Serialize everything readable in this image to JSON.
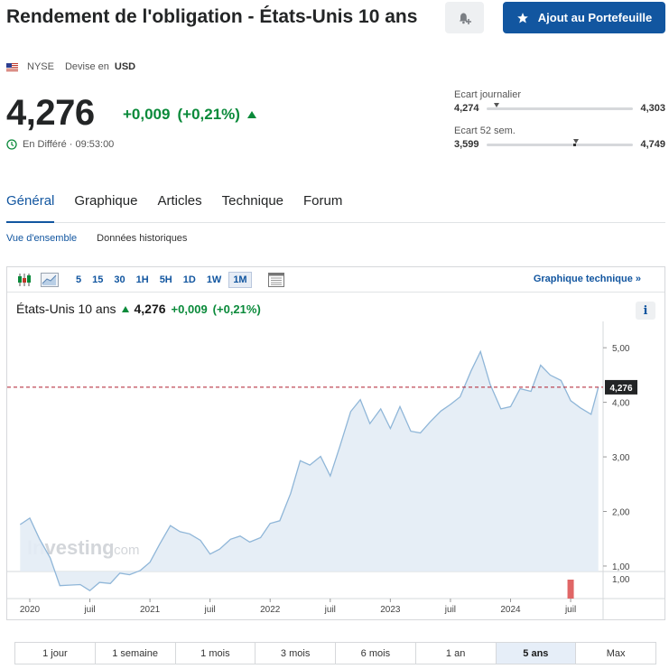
{
  "header": {
    "title": "Rendement de l'obligation - États-Unis 10 ans",
    "add_button": "Ajout au Portefeuille",
    "exchange": "NYSE",
    "currency_label": "Devise en",
    "currency": "USD"
  },
  "quote": {
    "price": "4,276",
    "change": "+0,009",
    "change_pct": "(+0,21%)",
    "delay_text": "En Différé · 09:53:00"
  },
  "ranges": {
    "daily": {
      "label": "Ecart journalier",
      "low": "4,274",
      "high": "4,303",
      "position": 0.05
    },
    "weekly52": {
      "label": "Ecart 52 sem.",
      "low": "3,599",
      "high": "4,749",
      "position": 0.59
    }
  },
  "tabs": [
    {
      "label": "Général",
      "active": true
    },
    {
      "label": "Graphique",
      "active": false
    },
    {
      "label": "Articles",
      "active": false
    },
    {
      "label": "Technique",
      "active": false
    },
    {
      "label": "Forum",
      "active": false
    }
  ],
  "subtabs": [
    {
      "label": "Vue d'ensemble",
      "active": true
    },
    {
      "label": "Données historiques",
      "active": false
    }
  ],
  "toolbar": {
    "intervals": [
      {
        "label": "5",
        "active": false
      },
      {
        "label": "15",
        "active": false
      },
      {
        "label": "30",
        "active": false
      },
      {
        "label": "1H",
        "active": false
      },
      {
        "label": "5H",
        "active": false
      },
      {
        "label": "1D",
        "active": false
      },
      {
        "label": "1W",
        "active": false
      },
      {
        "label": "1M",
        "active": true
      }
    ],
    "technical_link": "Graphique technique  »"
  },
  "chart_head": {
    "name": "États-Unis 10 ans",
    "value": "4,276",
    "change": "+0,009",
    "change_pct": "(+0,21%)",
    "info": "i"
  },
  "chart_data": {
    "type": "area",
    "watermark_a": "Investing",
    "watermark_b": ".com",
    "current_value_label": "4,276",
    "current_value": 4.276,
    "ylim": [
      0.9,
      5.35
    ],
    "y_ticks": [
      {
        "value": 5.0,
        "label": "5,00"
      },
      {
        "value": 4.0,
        "label": "4,00"
      },
      {
        "value": 3.0,
        "label": "3,00"
      },
      {
        "value": 2.0,
        "label": "2,00"
      },
      {
        "value": 1.0,
        "label": "1,00"
      }
    ],
    "volume_tick": "1,00",
    "x_ticks": [
      {
        "value": 2020.0,
        "label": "2020"
      },
      {
        "value": 2020.5,
        "label": "juil"
      },
      {
        "value": 2021.0,
        "label": "2021"
      },
      {
        "value": 2021.5,
        "label": "juil"
      },
      {
        "value": 2022.0,
        "label": "2022"
      },
      {
        "value": 2022.5,
        "label": "juil"
      },
      {
        "value": 2023.0,
        "label": "2023"
      },
      {
        "value": 2023.5,
        "label": "juil"
      },
      {
        "value": 2024.0,
        "label": "2024"
      },
      {
        "value": 2024.5,
        "label": "juil"
      }
    ],
    "x_range": [
      2019.88,
      2024.77
    ],
    "series": [
      {
        "x": [
          2019.92,
          2020.0,
          2020.08,
          2020.17,
          2020.25,
          2020.33,
          2020.42,
          2020.5,
          2020.58,
          2020.67,
          2020.75,
          2020.83,
          2020.92,
          2021.0,
          2021.08,
          2021.17,
          2021.25,
          2021.33,
          2021.42,
          2021.5,
          2021.58,
          2021.67,
          2021.75,
          2021.83,
          2021.92,
          2022.0,
          2022.08,
          2022.17,
          2022.25,
          2022.33,
          2022.42,
          2022.5,
          2022.58,
          2022.67,
          2022.75,
          2022.83,
          2022.92,
          2023.0,
          2023.08,
          2023.17,
          2023.25,
          2023.33,
          2023.42,
          2023.5,
          2023.58,
          2023.67,
          2023.75,
          2023.83,
          2023.92,
          2024.0,
          2024.08,
          2024.17,
          2024.25,
          2024.33,
          2024.42,
          2024.5,
          2024.58,
          2024.67,
          2024.73
        ],
        "values": [
          1.76,
          1.88,
          1.5,
          1.15,
          0.64,
          0.65,
          0.66,
          0.55,
          0.7,
          0.68,
          0.87,
          0.84,
          0.92,
          1.07,
          1.4,
          1.74,
          1.63,
          1.59,
          1.47,
          1.22,
          1.31,
          1.49,
          1.55,
          1.44,
          1.52,
          1.78,
          1.83,
          2.33,
          2.93,
          2.85,
          3.01,
          2.65,
          3.19,
          3.83,
          4.05,
          3.61,
          3.88,
          3.52,
          3.92,
          3.47,
          3.44,
          3.64,
          3.84,
          3.96,
          4.1,
          4.57,
          4.93,
          4.33,
          3.88,
          3.92,
          4.25,
          4.2,
          4.68,
          4.5,
          4.4,
          4.03,
          3.9,
          3.78,
          4.276
        ]
      }
    ],
    "volume_bar": {
      "x": 2024.5,
      "value": 1.0
    }
  },
  "periods": [
    {
      "label": "1 jour",
      "active": false
    },
    {
      "label": "1 semaine",
      "active": false
    },
    {
      "label": "1 mois",
      "active": false
    },
    {
      "label": "3 mois",
      "active": false
    },
    {
      "label": "6 mois",
      "active": false
    },
    {
      "label": "1 an",
      "active": false
    },
    {
      "label": "5 ans",
      "active": true
    },
    {
      "label": "Max",
      "active": false
    }
  ],
  "colors": {
    "accent": "#1256a0",
    "positive": "#0a8a3a",
    "line": "#8fb6d8",
    "area": "#e3ecf5",
    "ref_line": "#b01c2e",
    "volume": "#e06666"
  }
}
